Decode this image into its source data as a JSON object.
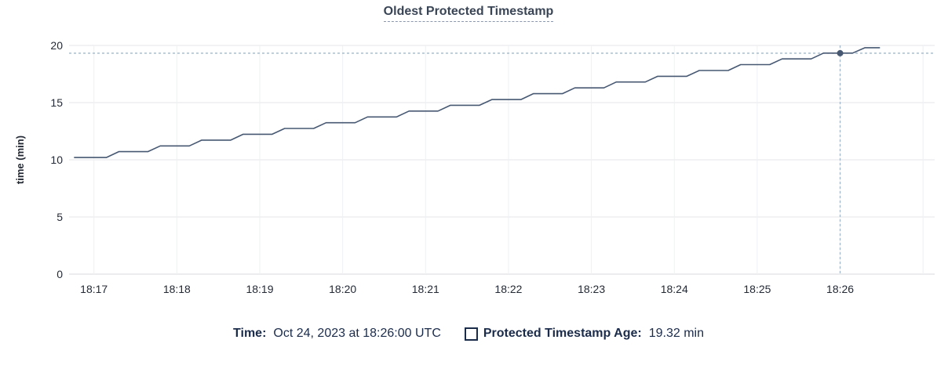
{
  "header": {
    "title": "Oldest Protected Timestamp"
  },
  "footer": {
    "time_label": "Time:",
    "time_value": "Oct 24, 2023 at 18:26:00 UTC",
    "series_label": "Protected Timestamp Age:",
    "series_value": "19.32 min",
    "swatch_icon": "checkbox-outline-icon"
  },
  "colors": {
    "title": "#394455",
    "series_line": "#475872",
    "axis_text": "#242a35",
    "legend_text": "#1b2b4a",
    "grid_horizontal": "#e4e5e8",
    "grid_vertical": "#eef0f2",
    "axis_baseline": "#d8dadd",
    "crosshair": "#a3b7c6"
  },
  "chart_data": {
    "type": "line",
    "title": "Oldest Protected Timestamp",
    "xlabel": "",
    "ylabel": "time (min)",
    "ylim": [
      0,
      20
    ],
    "yticks": [
      0,
      5,
      10,
      15,
      20
    ],
    "x_domain_minutes": [
      16.7,
      27.14
    ],
    "xticks": [
      {
        "t": 17,
        "label": "18:17"
      },
      {
        "t": 18,
        "label": "18:18"
      },
      {
        "t": 19,
        "label": "18:19"
      },
      {
        "t": 20,
        "label": "18:20"
      },
      {
        "t": 21,
        "label": "18:21"
      },
      {
        "t": 22,
        "label": "18:22"
      },
      {
        "t": 23,
        "label": "18:23"
      },
      {
        "t": 24,
        "label": "18:24"
      },
      {
        "t": 25,
        "label": "18:25"
      },
      {
        "t": 26,
        "label": "18:26"
      },
      {
        "t": 27,
        "label": ""
      }
    ],
    "grid": true,
    "legend_position": "bottom",
    "series": [
      {
        "name": "Protected Timestamp Age",
        "units": "min",
        "points": [
          [
            16.76,
            10.2
          ],
          [
            17.15,
            10.2
          ],
          [
            17.3,
            10.71
          ],
          [
            17.65,
            10.71
          ],
          [
            17.8,
            11.21
          ],
          [
            18.15,
            11.21
          ],
          [
            18.3,
            11.72
          ],
          [
            18.65,
            11.72
          ],
          [
            18.8,
            12.23
          ],
          [
            19.15,
            12.23
          ],
          [
            19.3,
            12.74
          ],
          [
            19.65,
            12.74
          ],
          [
            19.8,
            13.24
          ],
          [
            20.15,
            13.24
          ],
          [
            20.3,
            13.75
          ],
          [
            20.65,
            13.75
          ],
          [
            20.8,
            14.26
          ],
          [
            21.15,
            14.26
          ],
          [
            21.3,
            14.77
          ],
          [
            21.65,
            14.77
          ],
          [
            21.8,
            15.27
          ],
          [
            22.15,
            15.27
          ],
          [
            22.3,
            15.78
          ],
          [
            22.65,
            15.78
          ],
          [
            22.8,
            16.29
          ],
          [
            23.15,
            16.29
          ],
          [
            23.3,
            16.8
          ],
          [
            23.65,
            16.8
          ],
          [
            23.8,
            17.3
          ],
          [
            24.15,
            17.3
          ],
          [
            24.3,
            17.81
          ],
          [
            24.65,
            17.81
          ],
          [
            24.8,
            18.32
          ],
          [
            25.15,
            18.32
          ],
          [
            25.3,
            18.82
          ],
          [
            25.65,
            18.82
          ],
          [
            25.8,
            19.33
          ],
          [
            26.15,
            19.33
          ],
          [
            26.3,
            19.8
          ],
          [
            26.48,
            19.8
          ]
        ]
      }
    ],
    "crosshair": {
      "t": 26.0,
      "x_label": "18:26",
      "value": 19.32,
      "value_text": "19.32 min",
      "time_text": "Oct 24, 2023 at 18:26:00 UTC"
    }
  }
}
